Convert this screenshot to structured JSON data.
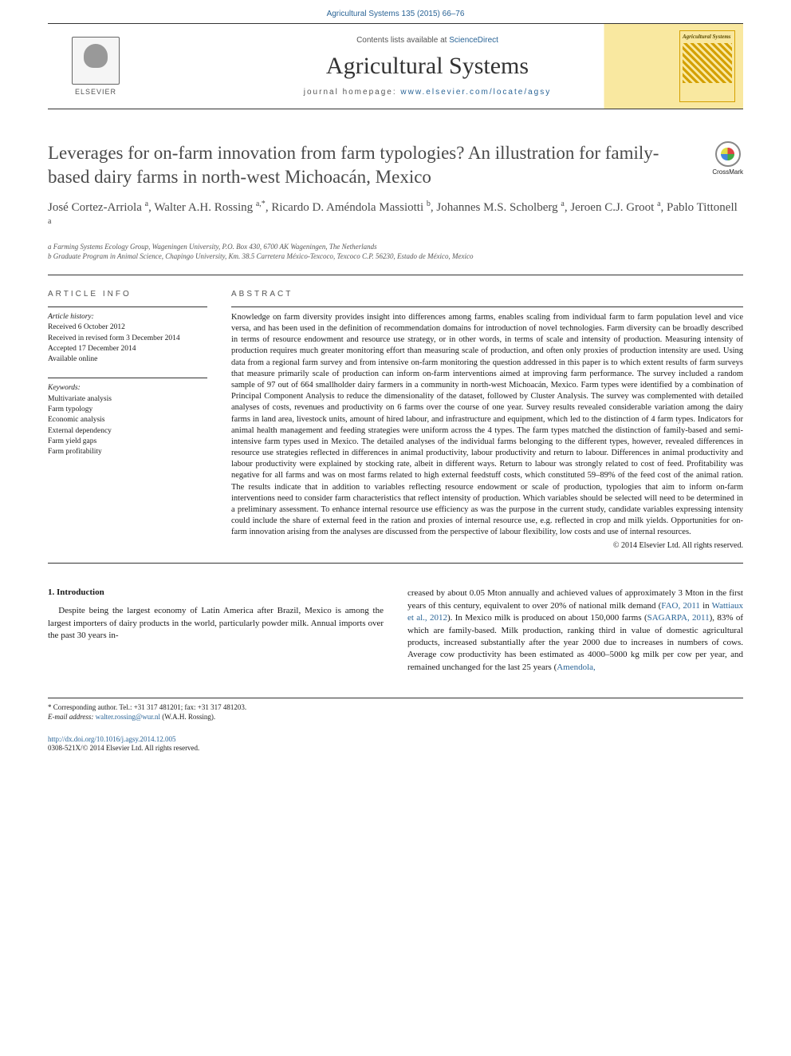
{
  "page_header": "Agricultural Systems 135 (2015) 66–76",
  "masthead": {
    "contents_prefix": "Contents lists available at ",
    "contents_link": "ScienceDirect",
    "journal_name": "Agricultural Systems",
    "homepage_prefix": "journal homepage: ",
    "homepage_link": "www.elsevier.com/locate/agsy",
    "elsevier_label": "ELSEVIER",
    "cover_title": "Agricultural Systems"
  },
  "crossmark_label": "CrossMark",
  "article": {
    "title": "Leverages for on-farm innovation from farm typologies? An illustration for family-based dairy farms in north-west Michoacán, Mexico",
    "authors_html": "José Cortez-Arriola <sup>a</sup>, Walter A.H. Rossing <sup>a,*</sup>, Ricardo D. Améndola Massiotti <sup>b</sup>, Johannes M.S. Scholberg <sup>a</sup>, Jeroen C.J. Groot <sup>a</sup>, Pablo Tittonell <sup>a</sup>",
    "affiliations": [
      "a Farming Systems Ecology Group, Wageningen University, P.O. Box 430, 6700 AK Wageningen, The Netherlands",
      "b Graduate Program in Animal Science, Chapingo University, Km. 38.5 Carretera México-Texcoco, Texcoco C.P. 56230, Estado de México, Mexico"
    ]
  },
  "info": {
    "section_label": "article info",
    "history_heading": "Article history:",
    "history": [
      "Received 6 October 2012",
      "Received in revised form 3 December 2014",
      "Accepted 17 December 2014",
      "Available online"
    ],
    "keywords_heading": "Keywords:",
    "keywords": [
      "Multivariate analysis",
      "Farm typology",
      "Economic analysis",
      "External dependency",
      "Farm yield gaps",
      "Farm profitability"
    ]
  },
  "abstract": {
    "section_label": "abstract",
    "text": "Knowledge on farm diversity provides insight into differences among farms, enables scaling from individual farm to farm population level and vice versa, and has been used in the definition of recommendation domains for introduction of novel technologies. Farm diversity can be broadly described in terms of resource endowment and resource use strategy, or in other words, in terms of scale and intensity of production. Measuring intensity of production requires much greater monitoring effort than measuring scale of production, and often only proxies of production intensity are used. Using data from a regional farm survey and from intensive on-farm monitoring the question addressed in this paper is to which extent results of farm surveys that measure primarily scale of production can inform on-farm interventions aimed at improving farm performance. The survey included a random sample of 97 out of 664 smallholder dairy farmers in a community in north-west Michoacán, Mexico. Farm types were identified by a combination of Principal Component Analysis to reduce the dimensionality of the dataset, followed by Cluster Analysis. The survey was complemented with detailed analyses of costs, revenues and productivity on 6 farms over the course of one year. Survey results revealed considerable variation among the dairy farms in land area, livestock units, amount of hired labour, and infrastructure and equipment, which led to the distinction of 4 farm types. Indicators for animal health management and feeding strategies were uniform across the 4 types. The farm types matched the distinction of family-based and semi-intensive farm types used in Mexico. The detailed analyses of the individual farms belonging to the different types, however, revealed differences in resource use strategies reflected in differences in animal productivity, labour productivity and return to labour. Differences in animal productivity and labour productivity were explained by stocking rate, albeit in different ways. Return to labour was strongly related to cost of feed. Profitability was negative for all farms and was on most farms related to high external feedstuff costs, which constituted 59–89% of the feed cost of the animal ration. The results indicate that in addition to variables reflecting resource endowment or scale of production, typologies that aim to inform on-farm interventions need to consider farm characteristics that reflect intensity of production. Which variables should be selected will need to be determined in a preliminary assessment. To enhance internal resource use efficiency as was the purpose in the current study, candidate variables expressing intensity could include the share of external feed in the ration and proxies of internal resource use, e.g. reflected in crop and milk yields. Opportunities for on-farm innovation arising from the analyses are discussed from the perspective of labour flexibility, low costs and use of internal resources.",
    "copyright": "© 2014 Elsevier Ltd. All rights reserved."
  },
  "body": {
    "section_num": "1. Introduction",
    "left_paragraph": "Despite being the largest economy of Latin America after Brazil, Mexico is among the largest importers of dairy products in the world, particularly powder milk. Annual imports over the past 30 years in-",
    "right_paragraph_1": "creased by about 0.05 Mton annually and achieved values of approximately 3 Mton in the first years of this century, equivalent to over 20% of national milk demand (",
    "right_link_1": "FAO, 2011",
    "right_text_2": " in ",
    "right_link_2": "Wattiaux et al., 2012",
    "right_text_3": "). In Mexico milk is produced on about 150,000 farms (",
    "right_link_3": "SAGARPA, 2011",
    "right_text_4": "), 83% of which are family-based. Milk production, ranking third in value of domestic agricultural products, increased substantially after the year 2000 due to increases in numbers of cows. Average cow productivity has been estimated as 4000–5000 kg milk per cow per year, and remained unchanged for the last 25 years (",
    "right_link_4": "Amendola,"
  },
  "footer": {
    "corr_line1": "* Corresponding author. Tel.: +31 317 481201; fax: +31 317 481203.",
    "corr_email_label": "E-mail address: ",
    "corr_email": "walter.rossing@wur.nl",
    "corr_email_suffix": " (W.A.H. Rossing).",
    "doi_link": "http://dx.doi.org/10.1016/j.agsy.2014.12.005",
    "issn_line": "0308-521X/© 2014 Elsevier Ltd. All rights reserved."
  },
  "colors": {
    "link": "#2a6496",
    "accent_bg": "#f9e8a0",
    "text": "#1a1a1a",
    "muted": "#555555"
  }
}
